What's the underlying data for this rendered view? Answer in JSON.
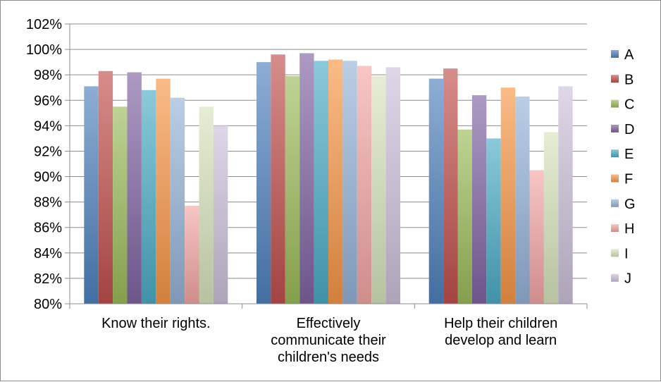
{
  "chart_data": {
    "type": "bar",
    "title": "",
    "xlabel": "",
    "ylabel": "",
    "ylim": [
      80,
      102
    ],
    "y_ticks": [
      "80%",
      "82%",
      "84%",
      "86%",
      "88%",
      "90%",
      "92%",
      "94%",
      "96%",
      "98%",
      "100%",
      "102%"
    ],
    "grid": true,
    "legend_position": "right",
    "categories": [
      [
        "Know their rights."
      ],
      [
        "Effectively",
        "communicate their",
        "children's needs"
      ],
      [
        "Help their children",
        "develop and learn"
      ]
    ],
    "series": [
      {
        "name": "A",
        "color": "#4f81bd",
        "values": [
          97.1,
          99.0,
          97.7
        ]
      },
      {
        "name": "B",
        "color": "#c0504d",
        "values": [
          98.3,
          99.6,
          98.5
        ]
      },
      {
        "name": "C",
        "color": "#9bbb59",
        "values": [
          95.5,
          97.9,
          93.7
        ]
      },
      {
        "name": "D",
        "color": "#8064a2",
        "values": [
          98.2,
          99.7,
          96.4
        ]
      },
      {
        "name": "E",
        "color": "#4bacc6",
        "values": [
          96.8,
          99.1,
          93.0
        ]
      },
      {
        "name": "F",
        "color": "#f79646",
        "values": [
          97.7,
          99.2,
          97.0
        ]
      },
      {
        "name": "G",
        "color": "#95b3d7",
        "values": [
          96.2,
          99.1,
          96.3
        ]
      },
      {
        "name": "H",
        "color": "#f2a7a5",
        "values": [
          87.7,
          98.7,
          90.5
        ]
      },
      {
        "name": "I",
        "color": "#d7e4bd",
        "values": [
          95.5,
          97.9,
          93.5
        ]
      },
      {
        "name": "J",
        "color": "#ccc1da",
        "values": [
          94.0,
          98.6,
          97.1
        ]
      }
    ]
  }
}
